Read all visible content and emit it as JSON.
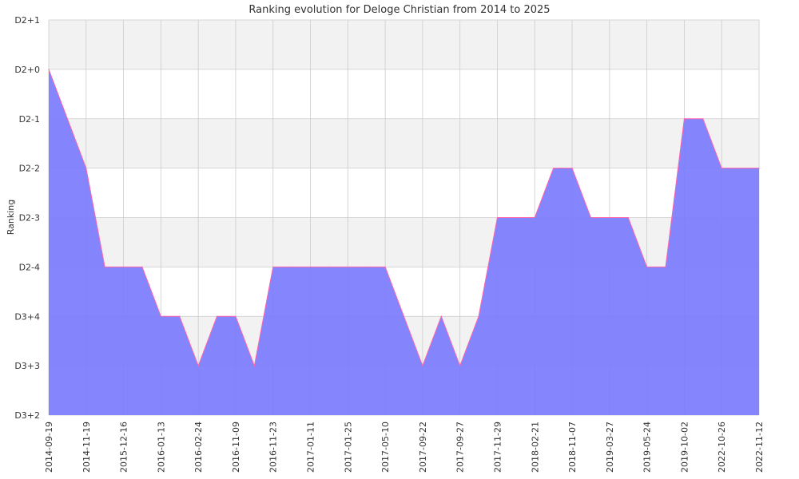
{
  "chart_data": {
    "type": "area",
    "title": "Ranking evolution for Deloge Christian from 2014 to 2025",
    "xlabel": "",
    "ylabel": "Ranking",
    "y_tick_labels": [
      "D3+2",
      "D3+3",
      "D3+4",
      "D2-4",
      "D2-3",
      "D2-2",
      "D2-1",
      "D2+0",
      "D2+1"
    ],
    "x_tick_labels": [
      "2014-09-19",
      "2014-11-19",
      "2015-12-16",
      "2016-01-13",
      "2016-02-24",
      "2016-11-09",
      "2016-11-23",
      "2017-01-11",
      "2017-01-25",
      "2017-05-10",
      "2017-09-22",
      "2017-09-27",
      "2017-11-29",
      "2018-02-21",
      "2018-11-07",
      "2019-03-27",
      "2019-05-24",
      "2019-10-02",
      "2022-10-26",
      "2022-11-12"
    ],
    "x_positions": [
      0,
      2,
      3,
      4,
      5,
      6,
      7,
      8,
      9,
      10,
      11,
      12,
      13,
      14,
      15,
      16,
      17,
      18,
      19,
      20,
      21,
      22,
      23,
      24,
      25,
      26,
      27,
      28,
      29,
      30,
      31,
      32,
      33,
      34,
      35,
      36,
      37,
      38
    ],
    "values": [
      7,
      5,
      3,
      3,
      3,
      2,
      2,
      1,
      2,
      2,
      1,
      3,
      3,
      3,
      3,
      3,
      3,
      3,
      2,
      1,
      2,
      1,
      2,
      4,
      4,
      4,
      5,
      5,
      4,
      4,
      4,
      3,
      3,
      6,
      6,
      5,
      5,
      5
    ],
    "x_range": [
      0,
      38
    ],
    "y_range": [
      0,
      8
    ],
    "grid": true,
    "colors": {
      "fill": "#7b7bfd",
      "line": "#ff66aa",
      "band": "#f2f2f2",
      "grid": "#cccccc"
    }
  }
}
